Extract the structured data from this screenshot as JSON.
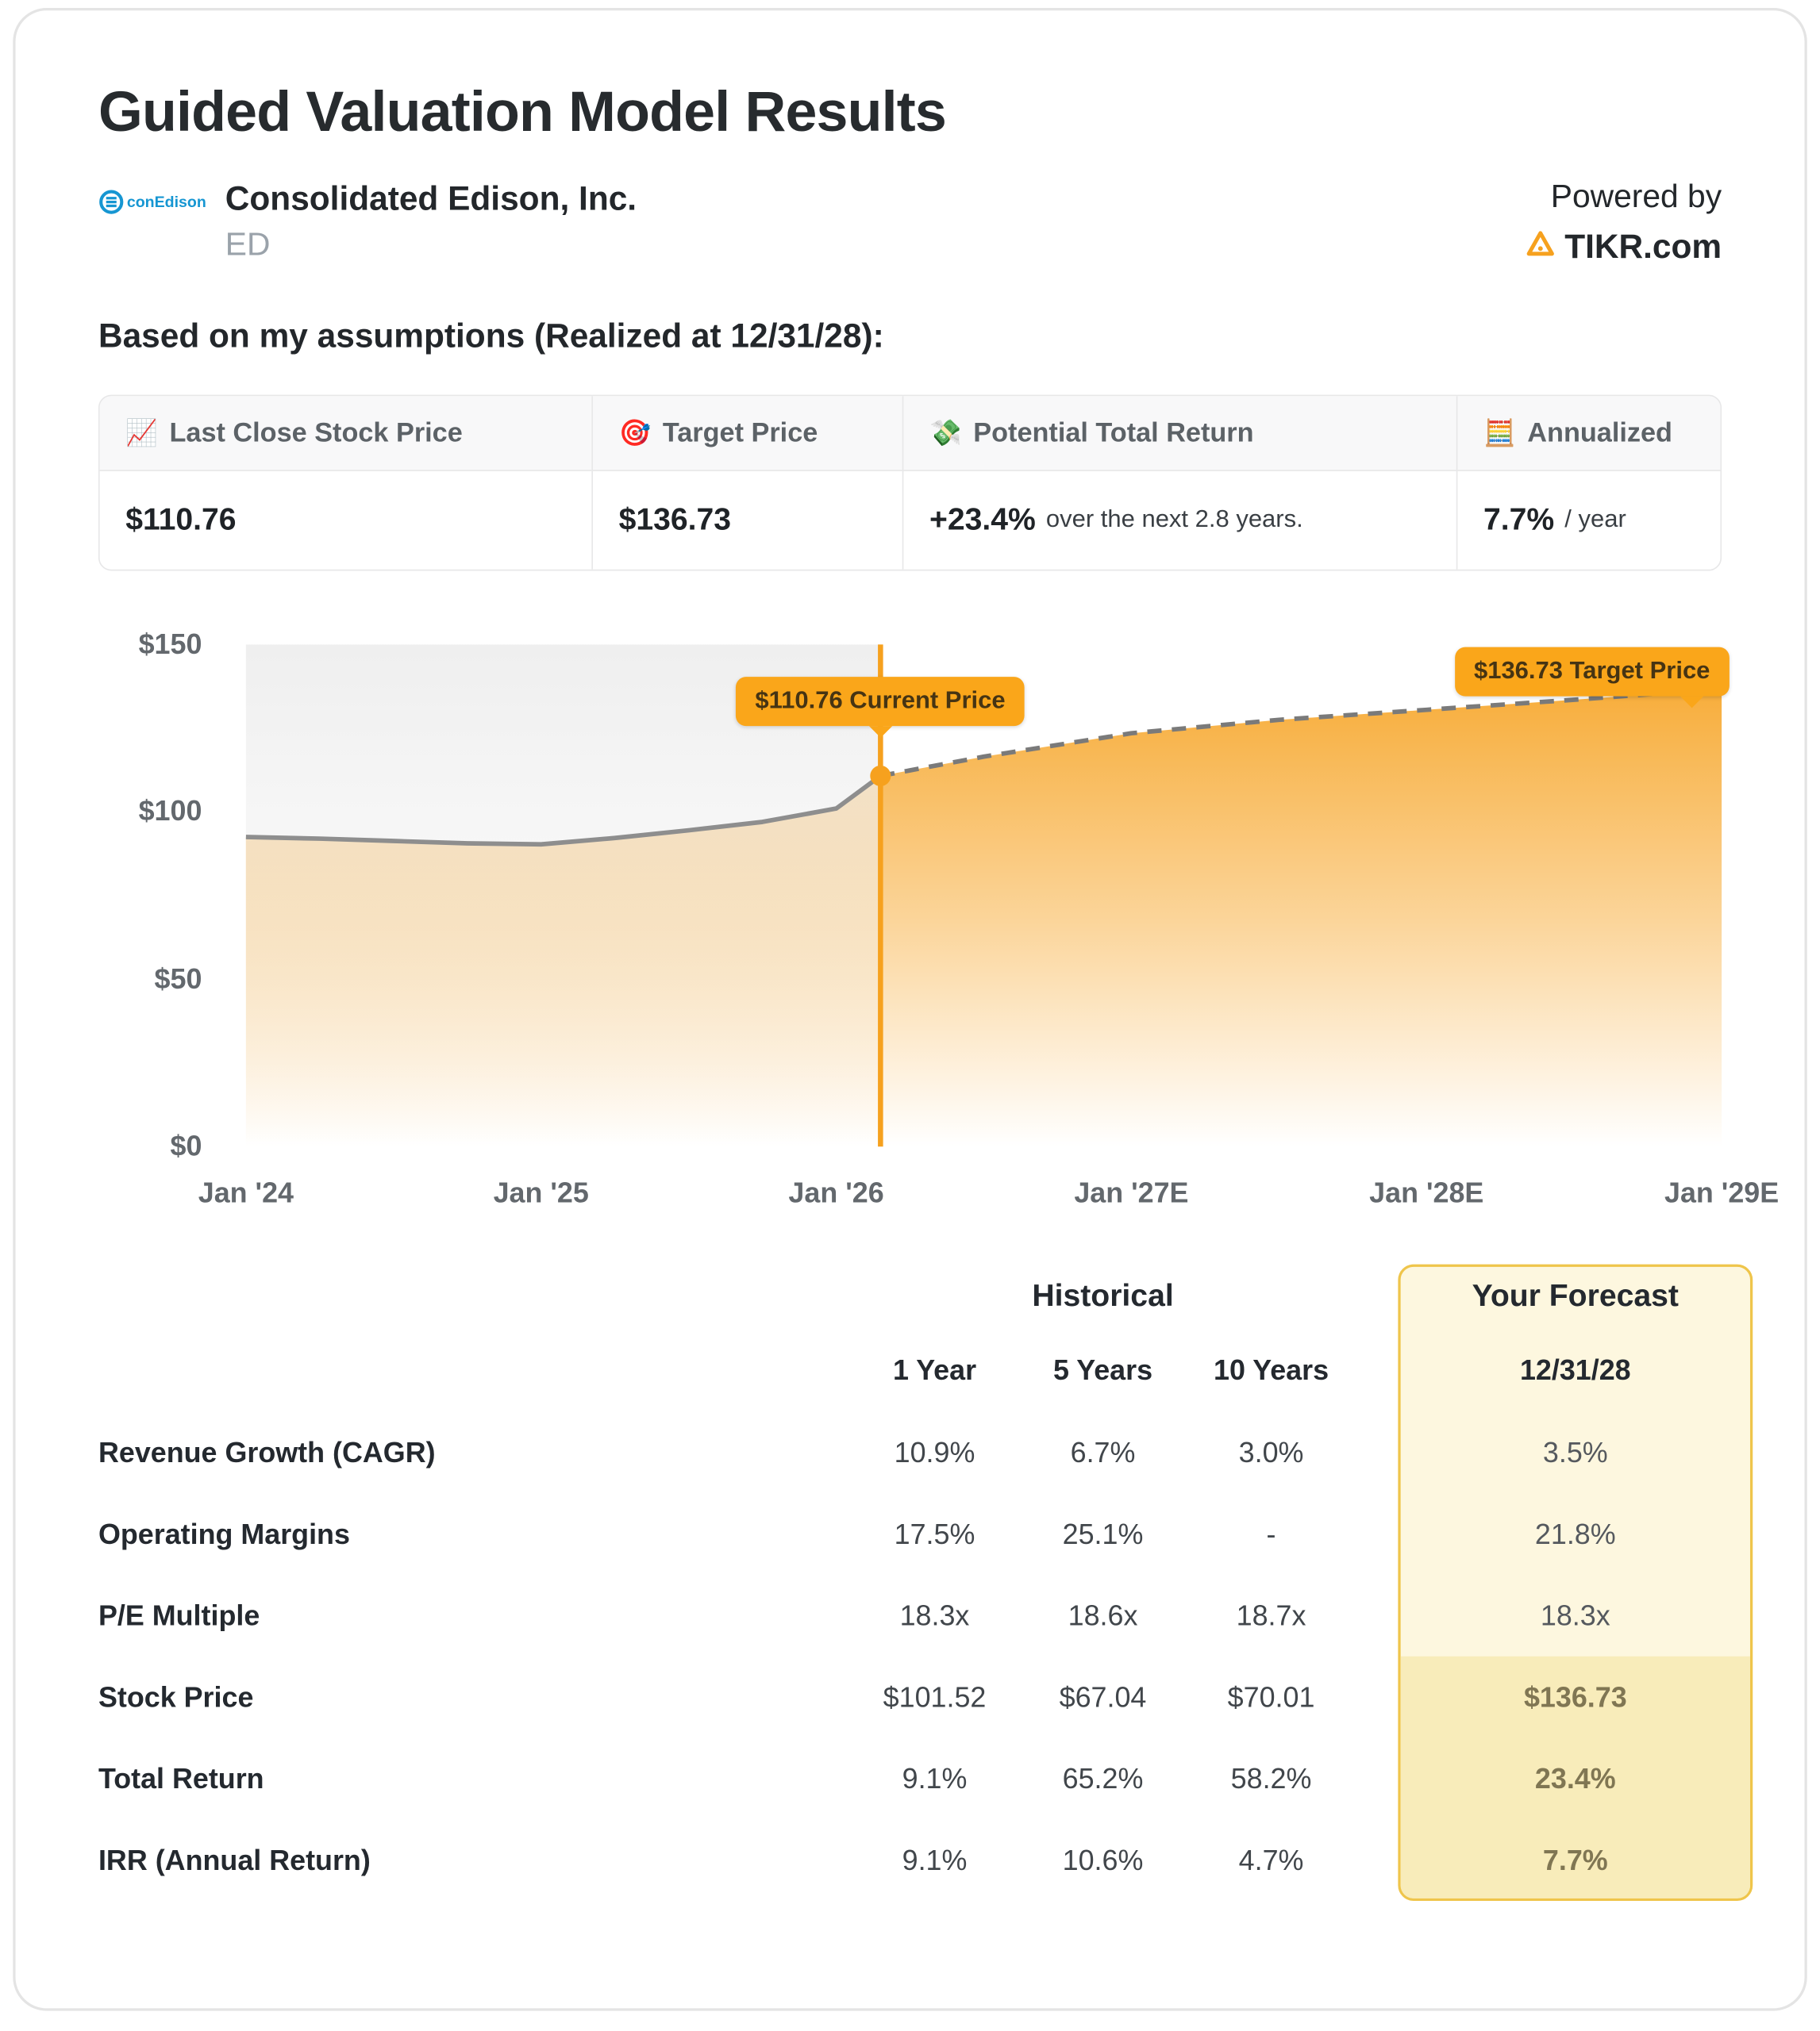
{
  "page": {
    "title": "Guided Valuation Model Results",
    "company": {
      "name": "Consolidated Edison, Inc.",
      "ticker": "ED",
      "logo_text": "conEdison"
    },
    "powered_by": {
      "line1": "Powered by",
      "brand": "TIKR.com"
    },
    "assumptions_line": "Based on my assumptions (Realized at 12/31/28):"
  },
  "summary_cards": [
    {
      "icon": "📈",
      "icon_name": "chart-increasing-icon",
      "label": "Last Close Stock Price",
      "value": "$110.76",
      "suffix": ""
    },
    {
      "icon": "🎯",
      "icon_name": "target-icon",
      "label": "Target Price",
      "value": "$136.73",
      "suffix": ""
    },
    {
      "icon": "💸",
      "icon_name": "money-with-wings-icon",
      "label": "Potential Total Return",
      "value": "+23.4%",
      "suffix": "over the next 2.8 years."
    },
    {
      "icon": "🧮",
      "icon_name": "abacus-icon",
      "label": "Annualized",
      "value": "7.7%",
      "suffix": "/ year"
    }
  ],
  "chart_data": {
    "type": "area",
    "title": "Stock price history and forecast",
    "xlabel": "",
    "ylabel": "",
    "xlim": [
      2024,
      2029
    ],
    "ylim": [
      0,
      150
    ],
    "grid": false,
    "y_ticks": [
      "$150",
      "$100",
      "$50",
      "$0"
    ],
    "x_ticks": [
      "Jan '24",
      "Jan '25",
      "Jan '26",
      "Jan '27E",
      "Jan '28E",
      "Jan '29E"
    ],
    "accent_color": "#F6A11E",
    "series": [
      {
        "name": "Historical Price",
        "style": "solid",
        "points": [
          [
            2024.0,
            92.5
          ],
          [
            2024.25,
            92.0
          ],
          [
            2024.5,
            91.3
          ],
          [
            2024.75,
            90.6
          ],
          [
            2025.0,
            90.3
          ],
          [
            2025.25,
            92.2
          ],
          [
            2025.5,
            94.5
          ],
          [
            2025.75,
            97.0
          ],
          [
            2026.0,
            101.0
          ],
          [
            2026.15,
            110.76
          ]
        ]
      },
      {
        "name": "Forecast Price",
        "style": "dashed",
        "points": [
          [
            2026.15,
            110.76
          ],
          [
            2026.5,
            116.5
          ],
          [
            2027.0,
            123.5
          ],
          [
            2027.5,
            127.5
          ],
          [
            2028.0,
            130.5
          ],
          [
            2028.5,
            133.5
          ],
          [
            2029.0,
            136.73
          ]
        ]
      }
    ],
    "annotations": {
      "current": {
        "label": "$110.76 Current Price",
        "x": 2026.15,
        "y": 110.76
      },
      "target": {
        "label": "$136.73 Target Price",
        "x": 2029.0,
        "y": 136.73
      }
    }
  },
  "table": {
    "group_headers": {
      "historical": "Historical",
      "forecast": "Your Forecast"
    },
    "col_headers": [
      "1 Year",
      "5 Years",
      "10 Years",
      "12/31/28"
    ],
    "rows": [
      {
        "label": "Revenue Growth (CAGR)",
        "values": [
          "10.9%",
          "6.7%",
          "3.0%"
        ],
        "forecast": "3.5%"
      },
      {
        "label": "Operating Margins",
        "values": [
          "17.5%",
          "25.1%",
          "-"
        ],
        "forecast": "21.8%"
      },
      {
        "label": "P/E Multiple",
        "values": [
          "18.3x",
          "18.6x",
          "18.7x"
        ],
        "forecast": "18.3x"
      },
      {
        "label": "Stock Price",
        "values": [
          "$101.52",
          "$67.04",
          "$70.01"
        ],
        "forecast": "$136.73"
      },
      {
        "label": "Total Return",
        "values": [
          "9.1%",
          "65.2%",
          "58.2%"
        ],
        "forecast": "23.4%"
      },
      {
        "label": "IRR (Annual Return)",
        "values": [
          "9.1%",
          "10.6%",
          "4.7%"
        ],
        "forecast": "7.7%"
      }
    ]
  }
}
